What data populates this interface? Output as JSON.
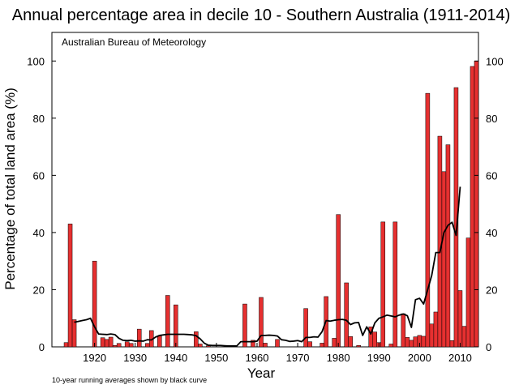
{
  "chart_data": {
    "type": "bar",
    "title": "Annual percentage area in decile 10 - Southern Australia (1911-2014)",
    "source_label": "Australian Bureau of Meteorology",
    "footnote": "10-year running averages shown by black curve",
    "xlabel": "Year",
    "ylabel": "Percentage of total land area (%)",
    "xlim": [
      1909.5,
      2014.5
    ],
    "ylim": [
      0,
      110
    ],
    "x_ticks": [
      1920,
      1930,
      1940,
      1950,
      1960,
      1970,
      1980,
      1990,
      2000,
      2010
    ],
    "y_ticks": [
      0,
      20,
      40,
      60,
      80,
      100
    ],
    "grid": false,
    "bar_color": "#e63030",
    "line_color": "#000000",
    "x": [
      1911,
      1912,
      1913,
      1914,
      1915,
      1916,
      1917,
      1918,
      1919,
      1920,
      1921,
      1922,
      1923,
      1924,
      1925,
      1926,
      1927,
      1928,
      1929,
      1930,
      1931,
      1932,
      1933,
      1934,
      1935,
      1936,
      1937,
      1938,
      1939,
      1940,
      1941,
      1942,
      1943,
      1944,
      1945,
      1946,
      1947,
      1948,
      1949,
      1950,
      1951,
      1952,
      1953,
      1954,
      1955,
      1956,
      1957,
      1958,
      1959,
      1960,
      1961,
      1962,
      1963,
      1964,
      1965,
      1966,
      1967,
      1968,
      1969,
      1970,
      1971,
      1972,
      1973,
      1974,
      1975,
      1976,
      1977,
      1978,
      1979,
      1980,
      1981,
      1982,
      1983,
      1984,
      1985,
      1986,
      1987,
      1988,
      1989,
      1990,
      1991,
      1992,
      1993,
      1994,
      1995,
      1996,
      1997,
      1998,
      1999,
      2000,
      2001,
      2002,
      2003,
      2004,
      2005,
      2006,
      2007,
      2008,
      2009,
      2010,
      2011,
      2012,
      2013,
      2014
    ],
    "values": [
      0,
      0,
      1.5,
      43,
      9.5,
      0,
      0,
      0,
      0,
      30,
      0,
      3.2,
      2.6,
      3.4,
      0.5,
      1.2,
      0,
      1.8,
      1.2,
      0,
      6.2,
      0,
      1.2,
      5.7,
      0,
      3.8,
      0,
      18,
      0,
      14.7,
      0,
      0,
      0,
      0,
      5.3,
      1,
      0,
      0.4,
      0,
      0,
      0,
      0,
      0,
      0,
      0,
      0,
      15,
      0,
      2.3,
      0,
      17.3,
      1.3,
      0,
      0,
      2.6,
      0,
      0,
      0,
      0,
      0,
      0,
      13.4,
      1.8,
      0,
      0,
      1.3,
      17.6,
      0,
      3,
      46.3,
      0,
      22.4,
      3.6,
      0,
      0.5,
      0,
      0,
      7,
      5.2,
      1.5,
      43.7,
      0,
      1,
      43.7,
      0,
      11.6,
      3.3,
      2.3,
      3.5,
      4,
      3.7,
      88.7,
      8,
      12.2,
      73.7,
      61.3,
      70.7,
      2.2,
      90.7,
      19.7,
      7.2,
      38.1,
      98.1,
      100
    ],
    "series": [
      {
        "x": [
          1915,
          1916,
          1917,
          1918,
          1919,
          1920,
          1921,
          1922,
          1923,
          1924,
          1925,
          1926,
          1927,
          1928,
          1929,
          1930,
          1931,
          1932,
          1933,
          1934,
          1935,
          1936,
          1937,
          1938,
          1939,
          1940,
          1941,
          1942,
          1943,
          1944,
          1945,
          1946,
          1947,
          1948,
          1949,
          1950,
          1951,
          1952,
          1953,
          1954,
          1955,
          1956,
          1957,
          1958,
          1959,
          1960,
          1961,
          1962,
          1963,
          1964,
          1965,
          1966,
          1967,
          1968,
          1969,
          1970,
          1971,
          1972,
          1973,
          1974,
          1975,
          1976,
          1977,
          1978,
          1979,
          1980,
          1981,
          1982,
          1983,
          1984,
          1985,
          1986,
          1987,
          1988,
          1989,
          1990,
          1991,
          1992,
          1993,
          1994,
          1995,
          1996,
          1997,
          1998,
          1999,
          2000,
          2001,
          2002,
          2003,
          2004,
          2005,
          2006,
          2007,
          2008,
          2009,
          2010
        ],
        "values": [
          8.6,
          8.9,
          9.2,
          9.5,
          10,
          7,
          4.5,
          4.4,
          4.3,
          4.5,
          4.3,
          3,
          2.3,
          2.2,
          2.3,
          2,
          2.1,
          2,
          2.5,
          2.4,
          3.4,
          4,
          4.2,
          4.4,
          4.4,
          4.4,
          4.4,
          4.4,
          4.3,
          4.2,
          3.9,
          2.8,
          1.3,
          0.6,
          0.5,
          0.5,
          0.5,
          0.4,
          0.3,
          0.3,
          0.3,
          1.8,
          1.8,
          1.8,
          1.8,
          2,
          4,
          4,
          4.1,
          4,
          3.8,
          2.5,
          2.3,
          1.9,
          2,
          2.2,
          1.8,
          3.3,
          3.3,
          3.5,
          3.4,
          5.3,
          9.2,
          9,
          9.3,
          9.5,
          9.6,
          9.3,
          7.8,
          8.4,
          8.5,
          4,
          7,
          4.5,
          8.4,
          10,
          10.5,
          11.1,
          10.8,
          10.5,
          11.1,
          11.5,
          10.9,
          6.8,
          16.5,
          17,
          15,
          20,
          25,
          33,
          33,
          40,
          42.5,
          43.6,
          39,
          56
        ]
      }
    ]
  }
}
